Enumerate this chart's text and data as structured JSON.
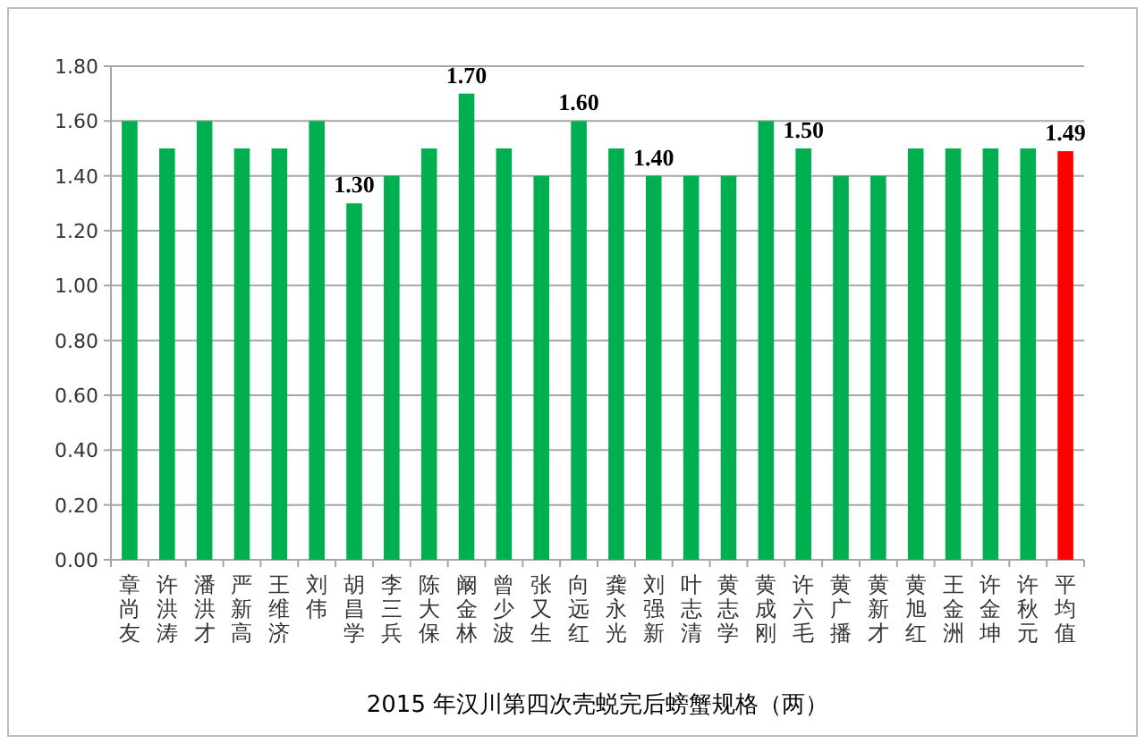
{
  "chart_data": {
    "type": "bar",
    "title": "2015 年汉川第四次壳蜕完后螃蟹规格（两）",
    "categories": [
      "章尚友",
      "许洪涛",
      "潘洪才",
      "严新高",
      "王维济",
      "刘伟",
      "胡昌学",
      "李三兵",
      "陈大保",
      "阚金林",
      "曾少波",
      "张又生",
      "向远红",
      "龚永光",
      "刘强新",
      "叶志清",
      "黄志学",
      "黄成刚",
      "许六毛",
      "黄广播",
      "黄新才",
      "黄旭红",
      "王金洲",
      "许金坤",
      "许秋元",
      "平均值"
    ],
    "values": [
      1.6,
      1.5,
      1.6,
      1.5,
      1.5,
      1.6,
      1.3,
      1.4,
      1.5,
      1.7,
      1.5,
      1.4,
      1.6,
      1.5,
      1.4,
      1.4,
      1.4,
      1.6,
      1.5,
      1.4,
      1.4,
      1.5,
      1.5,
      1.5,
      1.5,
      1.49
    ],
    "colors": [
      "#00b050",
      "#00b050",
      "#00b050",
      "#00b050",
      "#00b050",
      "#00b050",
      "#00b050",
      "#00b050",
      "#00b050",
      "#00b050",
      "#00b050",
      "#00b050",
      "#00b050",
      "#00b050",
      "#00b050",
      "#00b050",
      "#00b050",
      "#00b050",
      "#00b050",
      "#00b050",
      "#00b050",
      "#00b050",
      "#00b050",
      "#00b050",
      "#00b050",
      "#ff0000"
    ],
    "value_labels": [
      null,
      null,
      null,
      null,
      null,
      null,
      "1.30",
      null,
      null,
      "1.70",
      null,
      null,
      "1.60",
      null,
      "1.40",
      null,
      null,
      null,
      "1.50",
      null,
      null,
      null,
      null,
      null,
      null,
      "1.49"
    ],
    "ylim": [
      0,
      1.8
    ],
    "yticks": [
      {
        "value": 0,
        "label": "0.00"
      },
      {
        "value": 0.2,
        "label": "0.20"
      },
      {
        "value": 0.4,
        "label": "0.40"
      },
      {
        "value": 0.6,
        "label": "0.60"
      },
      {
        "value": 0.8,
        "label": "0.80"
      },
      {
        "value": 1,
        "label": "1.00"
      },
      {
        "value": 1.2,
        "label": "1.20"
      },
      {
        "value": 1.4,
        "label": "1.40"
      },
      {
        "value": 1.6,
        "label": "1.60"
      },
      {
        "value": 1.8,
        "label": "1.80"
      }
    ],
    "grid": "y"
  }
}
